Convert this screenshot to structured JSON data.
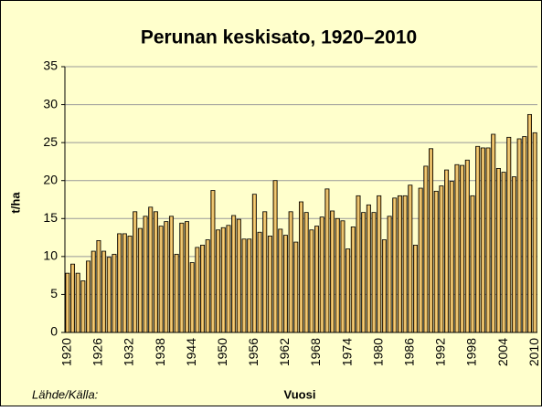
{
  "chart_data": {
    "type": "bar",
    "title": "Perunan keskisato, 1920–2010",
    "ylabel": "t/ha",
    "xlabel": "Vuosi",
    "source": "Lähde/Källa:",
    "categories": [
      "1920",
      null,
      null,
      null,
      null,
      null,
      "1926",
      null,
      null,
      null,
      null,
      null,
      "1932",
      null,
      null,
      null,
      null,
      null,
      "1938",
      null,
      null,
      null,
      null,
      null,
      "1944",
      null,
      null,
      null,
      null,
      null,
      "1950",
      null,
      null,
      null,
      null,
      null,
      "1956",
      null,
      null,
      null,
      null,
      null,
      "1962",
      null,
      null,
      null,
      null,
      null,
      "1968",
      null,
      null,
      null,
      null,
      null,
      "1974",
      null,
      null,
      null,
      null,
      null,
      "1980",
      null,
      null,
      null,
      null,
      null,
      "1986",
      null,
      null,
      null,
      null,
      null,
      "1992",
      null,
      null,
      null,
      null,
      null,
      "1998",
      null,
      null,
      null,
      null,
      null,
      "2004",
      null,
      null,
      null,
      null,
      null,
      "2010"
    ],
    "values": [
      7.8,
      9.0,
      7.8,
      6.8,
      9.4,
      10.7,
      12.1,
      10.7,
      9.9,
      10.3,
      13.0,
      13.0,
      12.7,
      15.9,
      13.7,
      15.3,
      16.5,
      15.9,
      14.0,
      14.6,
      15.3,
      10.3,
      14.4,
      14.6,
      9.2,
      11.2,
      11.5,
      12.2,
      18.7,
      13.5,
      13.8,
      14.1,
      15.4,
      14.9,
      12.3,
      12.3,
      18.2,
      13.2,
      15.9,
      12.7,
      20.0,
      13.6,
      12.8,
      15.9,
      11.9,
      17.2,
      15.8,
      13.5,
      14.0,
      15.2,
      18.9,
      16.0,
      15.0,
      14.7,
      11.0,
      13.9,
      18.0,
      15.8,
      16.8,
      15.8,
      18.0,
      12.2,
      15.3,
      17.7,
      18.0,
      18.0,
      19.4,
      11.5,
      19.0,
      21.9,
      24.2,
      18.6,
      19.3,
      21.4,
      19.9,
      22.1,
      22.0,
      22.7,
      18.0,
      24.5,
      24.3,
      24.3,
      26.1,
      21.6,
      21.1,
      25.7,
      20.5,
      25.5,
      25.8,
      28.7,
      26.3
    ],
    "color": "#e9a93a",
    "ylim": [
      0,
      35
    ],
    "yticks": [
      0,
      5,
      10,
      15,
      20,
      25,
      30,
      35
    ],
    "grid": true
  }
}
